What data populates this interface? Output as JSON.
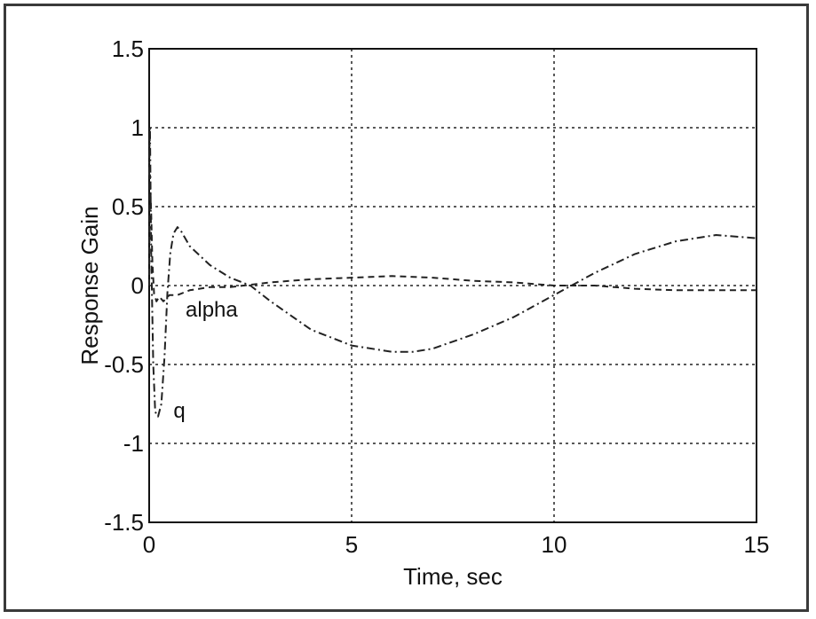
{
  "chart_data": {
    "type": "line",
    "title": "",
    "xlabel": "Time, sec",
    "ylabel": "Response Gain",
    "xlim": [
      0,
      15
    ],
    "ylim": [
      -1.5,
      1.5
    ],
    "xticks": [
      0,
      5,
      10,
      15
    ],
    "yticks": [
      -1.5,
      -1,
      -0.5,
      0,
      0.5,
      1,
      1.5
    ],
    "xtick_labels": [
      "0",
      "5",
      "10",
      "15"
    ],
    "ytick_labels": [
      "-1.5",
      "-1",
      "-0.5",
      "0",
      "0.5",
      "1",
      "1.5"
    ],
    "grid": true,
    "annotations": [
      {
        "text": "alpha",
        "x": 0.9,
        "y": -0.14
      },
      {
        "text": "q",
        "x": 0.6,
        "y": -0.78
      }
    ],
    "series": [
      {
        "name": "alpha",
        "style": "dashed",
        "x": [
          0,
          0.02,
          0.05,
          0.08,
          0.12,
          0.18,
          0.25,
          0.35,
          0.5,
          0.7,
          1.0,
          1.5,
          2.0,
          3.0,
          4.0,
          5.0,
          6.0,
          7.0,
          8.0,
          9.0,
          10.0,
          11.0,
          12.0,
          13.0,
          14.0,
          15.0
        ],
        "y": [
          0,
          0.7,
          0.45,
          0.15,
          -0.05,
          -0.1,
          -0.07,
          -0.1,
          -0.06,
          -0.06,
          -0.03,
          -0.01,
          -0.01,
          0.02,
          0.04,
          0.05,
          0.06,
          0.05,
          0.03,
          0.02,
          0.0,
          0.0,
          -0.02,
          -0.03,
          -0.03,
          -0.03
        ]
      },
      {
        "name": "q",
        "style": "dash-dot",
        "x": [
          0,
          0.02,
          0.05,
          0.1,
          0.15,
          0.22,
          0.3,
          0.38,
          0.45,
          0.52,
          0.6,
          0.7,
          0.8,
          1.0,
          1.5,
          2.0,
          2.5,
          3.0,
          4.0,
          5.0,
          6.0,
          6.5,
          7.0,
          8.0,
          9.0,
          10.0,
          11.0,
          12.0,
          13.0,
          14.0,
          15.0
        ],
        "y": [
          0.7,
          1.0,
          0.2,
          -0.5,
          -0.8,
          -0.83,
          -0.75,
          -0.45,
          -0.05,
          0.2,
          0.33,
          0.37,
          0.34,
          0.25,
          0.13,
          0.05,
          0.0,
          -0.1,
          -0.28,
          -0.38,
          -0.42,
          -0.42,
          -0.4,
          -0.31,
          -0.2,
          -0.06,
          0.08,
          0.2,
          0.28,
          0.32,
          0.3
        ]
      }
    ]
  }
}
